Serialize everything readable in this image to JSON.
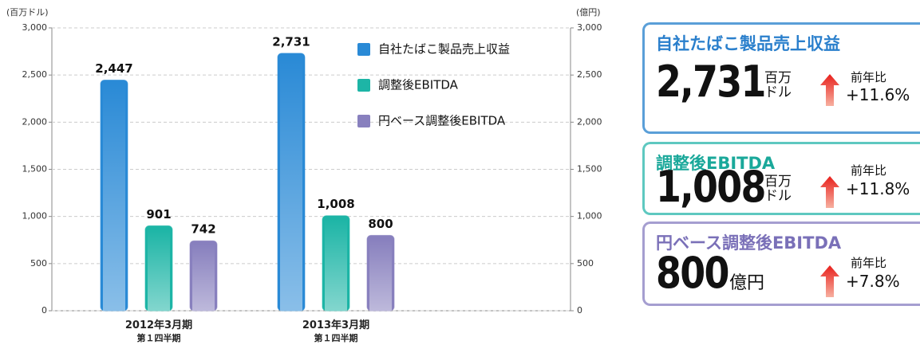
{
  "chart_data": {
    "type": "bar",
    "y_label": "(百万ドル)",
    "y2_label": "(億円)",
    "categories": [
      "2012年3月期\n第１四半期",
      "2013年3月期\n第１四半期"
    ],
    "series": [
      {
        "name": "自社たばこ製品売上収益",
        "color": "#2a8ad6",
        "values": [
          2447,
          2731
        ],
        "value_labels": [
          "2,447",
          "2,731"
        ]
      },
      {
        "name": "調整後EBITDA",
        "color": "#1db5a6",
        "values": [
          901,
          1008
        ],
        "value_labels": [
          "901",
          "1,008"
        ]
      },
      {
        "name": "円ベース調整後EBITDA",
        "color": "#8880be",
        "values": [
          742,
          800
        ],
        "value_labels": [
          "742",
          "800"
        ],
        "axis": "y2"
      }
    ],
    "ylim": [
      0,
      3000
    ],
    "yticks": [
      0,
      {
        "value": 500,
        "label": "500"
      },
      {
        "value": 1000,
        "label": "1,000"
      },
      {
        "value": 1500,
        "label": "1,500"
      },
      {
        "value": 2000,
        "label": "2,000"
      },
      {
        "value": 2500,
        "label": "2,500"
      },
      {
        "value": 3000,
        "label": "3,000"
      }
    ],
    "y2lim": [
      0,
      3000
    ],
    "y2ticks": [
      0,
      {
        "value": 500,
        "label": "500"
      },
      {
        "value": 1000,
        "label": "1,000"
      },
      {
        "value": 1500,
        "label": "1,500"
      },
      {
        "value": 2000,
        "label": "2,000"
      },
      {
        "value": 2500,
        "label": "2,500"
      },
      {
        "value": 3000,
        "label": "3,000"
      }
    ],
    "grid": true,
    "legend": "top-right"
  },
  "cards": [
    {
      "title": "自社たばこ製品売上収益",
      "value": "2,731",
      "unit": [
        "百万",
        "ドル"
      ],
      "change_label": "前年比",
      "change": "+11.6%"
    },
    {
      "title": "調整後EBITDA",
      "value": "1,008",
      "unit": [
        "百万",
        "ドル"
      ],
      "change_label": "前年比",
      "change": "+11.8%"
    },
    {
      "title": "円ベース調整後EBITDA",
      "value": "800",
      "unit": [
        "億円"
      ],
      "change_label": "前年比",
      "change": "+7.8%"
    }
  ]
}
